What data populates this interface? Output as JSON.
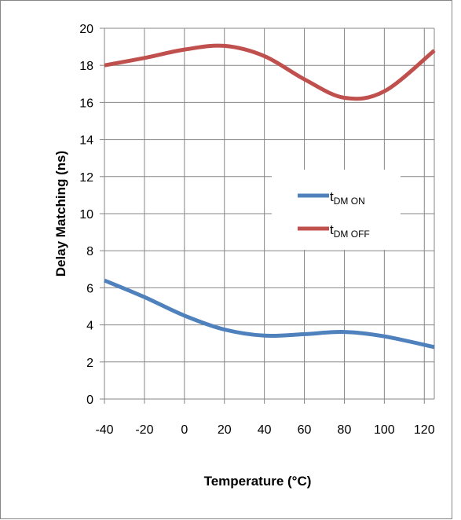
{
  "chart_data": {
    "type": "line",
    "title": "",
    "xlabel": "Temperature (°C)",
    "ylabel": "Delay Matching (ns)",
    "xlim": [
      -40,
      125
    ],
    "ylim": [
      0,
      20
    ],
    "x_ticks": [
      -40,
      -20,
      0,
      20,
      40,
      60,
      80,
      100,
      120
    ],
    "y_ticks": [
      0,
      2,
      4,
      6,
      8,
      10,
      12,
      14,
      16,
      18,
      20
    ],
    "grid": true,
    "legend_position": "right-middle",
    "series": [
      {
        "name": "tDM ON",
        "label_main": "t",
        "label_sub": "DM ON",
        "color": "#4f81bd",
        "x": [
          -40,
          -20,
          0,
          20,
          40,
          60,
          80,
          100,
          125
        ],
        "y": [
          6.4,
          5.5,
          4.5,
          3.75,
          3.42,
          3.5,
          3.62,
          3.38,
          2.8
        ]
      },
      {
        "name": "tDM OFF",
        "label_main": "t",
        "label_sub": "DM OFF",
        "color": "#c0504d",
        "x": [
          -40,
          -20,
          0,
          20,
          40,
          60,
          80,
          100,
          125
        ],
        "y": [
          18.0,
          18.4,
          18.85,
          19.05,
          18.5,
          17.25,
          16.25,
          16.6,
          18.8
        ]
      }
    ]
  }
}
